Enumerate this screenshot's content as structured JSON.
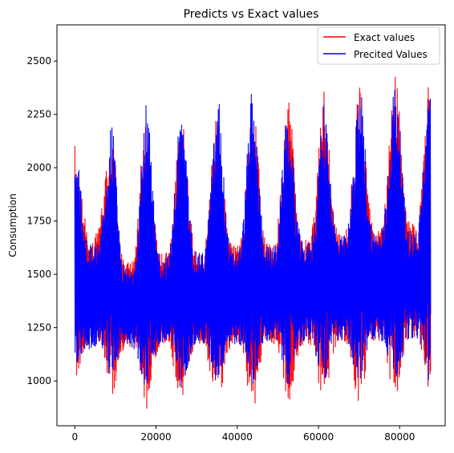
{
  "chart_data": {
    "type": "line",
    "title": "Predicts vs Exact values",
    "xlabel": "",
    "ylabel": "Consumption",
    "xlim": [
      -4400,
      91200
    ],
    "ylim": [
      790,
      2670
    ],
    "x_ticks": [
      0,
      20000,
      40000,
      60000,
      80000
    ],
    "x_tick_labels": [
      "0",
      "20000",
      "40000",
      "60000",
      "80000"
    ],
    "y_ticks": [
      1000,
      1250,
      1500,
      1750,
      2000,
      2250,
      2500
    ],
    "y_tick_labels": [
      "1000",
      "1250",
      "1500",
      "1750",
      "2000",
      "2250",
      "2500"
    ],
    "grid": false,
    "legend_position": "top-right",
    "x_range": [
      0,
      87600
    ],
    "seasonal_cycle_length": 8760,
    "series": [
      {
        "name": "Exact values",
        "color": "#ff0000",
        "peak_values": [
          2105,
          2260,
          2275,
          2270,
          2240,
          2295,
          2320,
          2370,
          2470,
          2445,
          2540
        ],
        "trough_values": [
          1005,
          905,
          860,
          865,
          870,
          860,
          880,
          885,
          905,
          900,
          900
        ],
        "summer_upper": [
          1700,
          1560,
          1600,
          1620,
          1640,
          1660,
          1680,
          1700,
          1720,
          1740
        ],
        "summer_lower": [
          1180,
          1150,
          1150,
          1160,
          1160,
          1170,
          1170,
          1180,
          1190,
          1200
        ]
      },
      {
        "name": "Precited Values",
        "color": "#0000ff",
        "peak_values": [
          2090,
          2250,
          2300,
          2230,
          2370,
          2280,
          2220,
          2320,
          2400,
          2440,
          2450
        ],
        "trough_values": [
          1030,
          965,
          960,
          975,
          975,
          985,
          975,
          975,
          995,
          990,
          985
        ],
        "summer_upper": [
          1650,
          1530,
          1580,
          1600,
          1610,
          1630,
          1650,
          1680,
          1700,
          1710
        ],
        "summer_lower": [
          1150,
          1160,
          1160,
          1170,
          1170,
          1180,
          1180,
          1190,
          1190,
          1200
        ]
      }
    ]
  }
}
